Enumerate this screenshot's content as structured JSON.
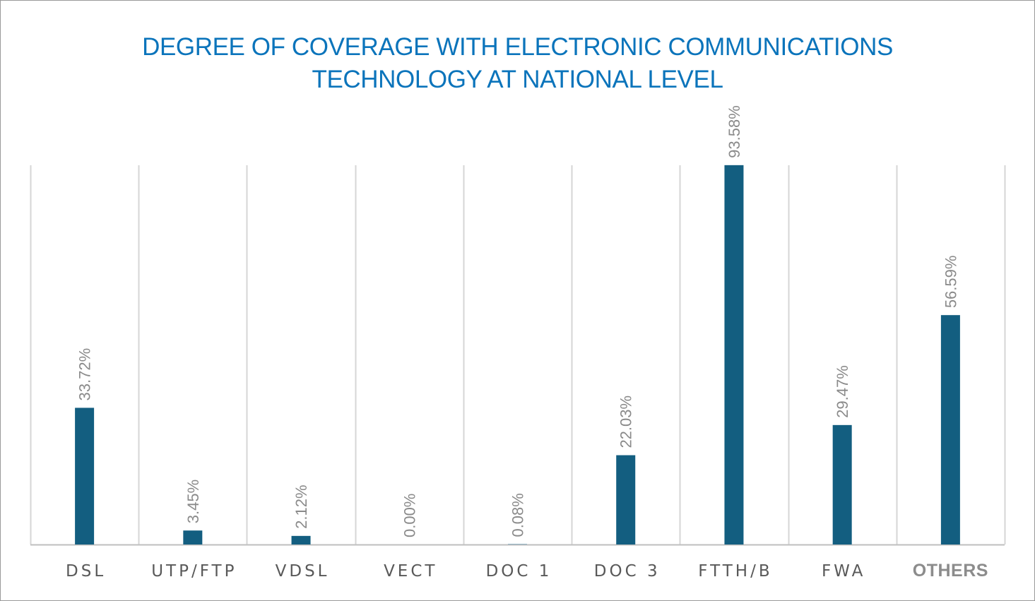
{
  "title_lines": [
    "DEGREE OF COVERAGE WITH ELECTRONIC COMMUNICATIONS",
    "TECHNOLOGY AT NATIONAL LEVEL"
  ],
  "colors": {
    "title": "#0b74bb",
    "bar": "#135e80",
    "grid": "#d6d6d6",
    "axis": "#bfbfbf"
  },
  "chart_data": {
    "type": "bar",
    "title": "DEGREE OF COVERAGE WITH ELECTRONIC COMMUNICATIONS TECHNOLOGY AT NATIONAL LEVEL",
    "categories": [
      "DSL",
      "UTP/FTP",
      "VDSL",
      "VECT",
      "DOC 1",
      "DOC 3",
      "FTTH/B",
      "FWA",
      "OTHERS"
    ],
    "values": [
      33.72,
      3.45,
      2.12,
      0.0,
      0.08,
      22.03,
      93.58,
      29.47,
      56.59
    ],
    "data_labels": [
      "33.72%",
      "3.45%",
      "2.12%",
      "0.00%",
      "0.08%",
      "22.03%",
      "93.58%",
      "29.47%",
      "56.59%"
    ],
    "emphasized_category": "OTHERS",
    "ylim": [
      0,
      100
    ],
    "xlabel": "",
    "ylabel": "",
    "grid": true,
    "legend": "none"
  }
}
